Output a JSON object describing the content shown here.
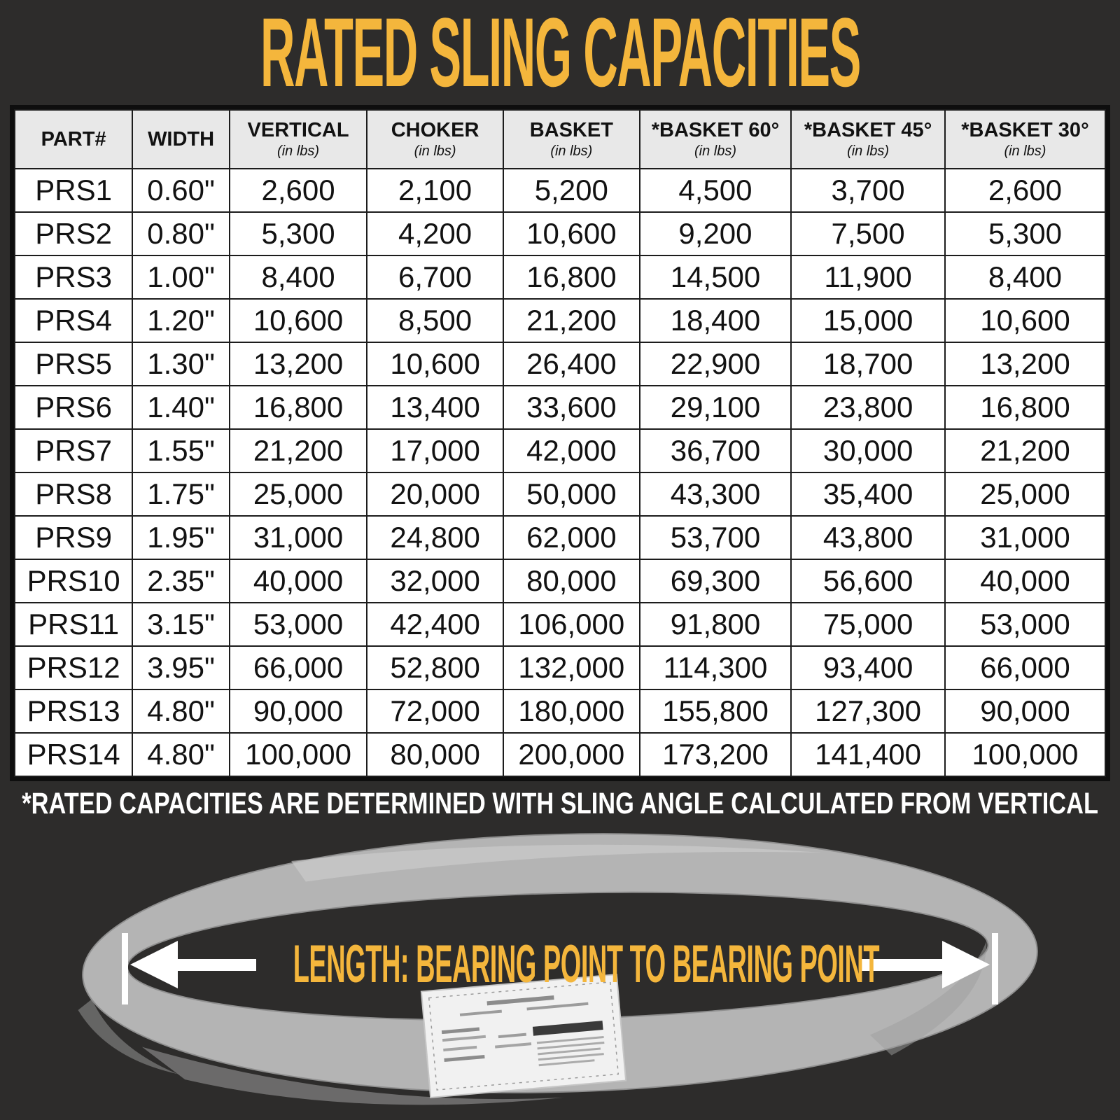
{
  "title": "RATED SLING CAPACITIES",
  "footnote": "*RATED CAPACITIES ARE DETERMINED WITH SLING ANGLE CALCULATED FROM VERTICAL",
  "diagram": {
    "length_label": "LENGTH: BEARING POINT TO BEARING POINT"
  },
  "colors": {
    "background": "#2d2c2b",
    "accent": "#F4B63C",
    "header_bg": "#E8E8E8",
    "cell_bg": "#FFFFFF",
    "grid": "#1C1C1C",
    "text_dark": "#121212",
    "text_light": "#FFFFFF",
    "sling_gray": "#B4B4B4"
  },
  "chart_data": {
    "type": "table",
    "title": "RATED SLING CAPACITIES",
    "columns": [
      {
        "label": "PART#",
        "sub": ""
      },
      {
        "label": "WIDTH",
        "sub": ""
      },
      {
        "label": "VERTICAL",
        "sub": "(in lbs)"
      },
      {
        "label": "CHOKER",
        "sub": "(in lbs)"
      },
      {
        "label": "BASKET",
        "sub": "(in lbs)"
      },
      {
        "label": "*BASKET 60°",
        "sub": "(in lbs)"
      },
      {
        "label": "*BASKET 45°",
        "sub": "(in lbs)"
      },
      {
        "label": "*BASKET 30°",
        "sub": "(in lbs)"
      }
    ],
    "rows": [
      [
        "PRS1",
        "0.60\"",
        "2,600",
        "2,100",
        "5,200",
        "4,500",
        "3,700",
        "2,600"
      ],
      [
        "PRS2",
        "0.80\"",
        "5,300",
        "4,200",
        "10,600",
        "9,200",
        "7,500",
        "5,300"
      ],
      [
        "PRS3",
        "1.00\"",
        "8,400",
        "6,700",
        "16,800",
        "14,500",
        "11,900",
        "8,400"
      ],
      [
        "PRS4",
        "1.20\"",
        "10,600",
        "8,500",
        "21,200",
        "18,400",
        "15,000",
        "10,600"
      ],
      [
        "PRS5",
        "1.30\"",
        "13,200",
        "10,600",
        "26,400",
        "22,900",
        "18,700",
        "13,200"
      ],
      [
        "PRS6",
        "1.40\"",
        "16,800",
        "13,400",
        "33,600",
        "29,100",
        "23,800",
        "16,800"
      ],
      [
        "PRS7",
        "1.55\"",
        "21,200",
        "17,000",
        "42,000",
        "36,700",
        "30,000",
        "21,200"
      ],
      [
        "PRS8",
        "1.75\"",
        "25,000",
        "20,000",
        "50,000",
        "43,300",
        "35,400",
        "25,000"
      ],
      [
        "PRS9",
        "1.95\"",
        "31,000",
        "24,800",
        "62,000",
        "53,700",
        "43,800",
        "31,000"
      ],
      [
        "PRS10",
        "2.35\"",
        "40,000",
        "32,000",
        "80,000",
        "69,300",
        "56,600",
        "40,000"
      ],
      [
        "PRS11",
        "3.15\"",
        "53,000",
        "42,400",
        "106,000",
        "91,800",
        "75,000",
        "53,000"
      ],
      [
        "PRS12",
        "3.95\"",
        "66,000",
        "52,800",
        "132,000",
        "114,300",
        "93,400",
        "66,000"
      ],
      [
        "PRS13",
        "4.80\"",
        "90,000",
        "72,000",
        "180,000",
        "155,800",
        "127,300",
        "90,000"
      ],
      [
        "PRS14",
        "4.80\"",
        "100,000",
        "80,000",
        "200,000",
        "173,200",
        "141,400",
        "100,000"
      ]
    ]
  }
}
